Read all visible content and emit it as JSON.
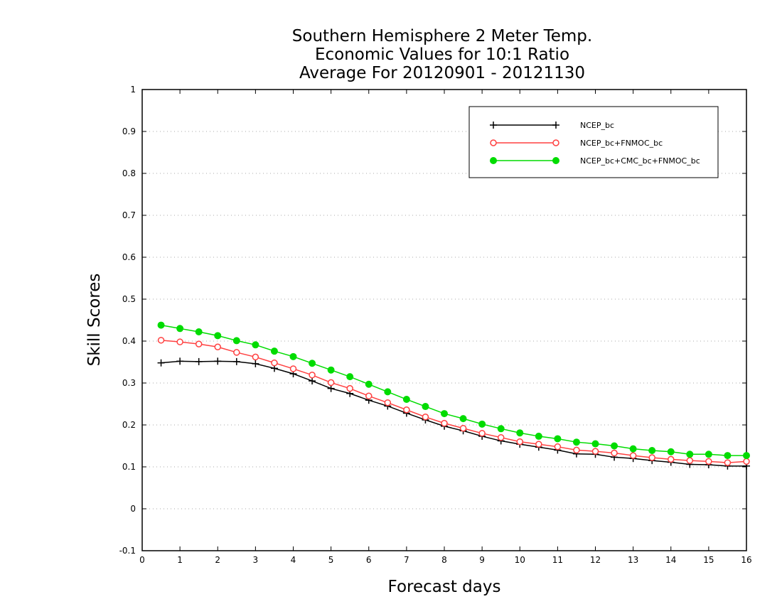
{
  "chart_data": {
    "type": "line",
    "title_lines": [
      "Southern Hemisphere 2 Meter Temp.",
      "Economic Values for 10:1 Ratio",
      "Average For 20120901 - 20121130"
    ],
    "xlabel": "Forecast days",
    "ylabel": "Skill Scores",
    "xlim": [
      0,
      16
    ],
    "ylim": [
      -0.1,
      1
    ],
    "xticks": [
      "0",
      "1",
      "2",
      "3",
      "4",
      "5",
      "6",
      "7",
      "8",
      "9",
      "10",
      "11",
      "12",
      "13",
      "14",
      "15",
      "16"
    ],
    "yticks": [
      "-0.1",
      "0",
      "0.1",
      "0.2",
      "0.3",
      "0.4",
      "0.5",
      "0.6",
      "0.7",
      "0.8",
      "0.9",
      "1"
    ],
    "grid": true,
    "legend_position": "top-right",
    "x": [
      0.5,
      1,
      1.5,
      2,
      2.5,
      3,
      3.5,
      4,
      4.5,
      5,
      5.5,
      6,
      6.5,
      7,
      7.5,
      8,
      8.5,
      9,
      9.5,
      10,
      10.5,
      11,
      11.5,
      12,
      12.5,
      13,
      13.5,
      14,
      14.5,
      15,
      15.5,
      16
    ],
    "series": [
      {
        "name": "NCEP_bc",
        "color": "#000000",
        "marker": "plus",
        "values": [
          0.348,
          0.352,
          0.351,
          0.352,
          0.351,
          0.346,
          0.335,
          0.322,
          0.305,
          0.287,
          0.275,
          0.259,
          0.245,
          0.228,
          0.212,
          0.197,
          0.186,
          0.173,
          0.162,
          0.154,
          0.147,
          0.14,
          0.131,
          0.13,
          0.123,
          0.12,
          0.115,
          0.111,
          0.106,
          0.105,
          0.102,
          0.102
        ]
      },
      {
        "name": "NCEP_bc+FNMOC_bc",
        "color": "#ff4040",
        "marker": "open-circle",
        "values": [
          0.402,
          0.398,
          0.393,
          0.386,
          0.373,
          0.362,
          0.348,
          0.334,
          0.319,
          0.301,
          0.287,
          0.269,
          0.253,
          0.236,
          0.219,
          0.204,
          0.192,
          0.18,
          0.17,
          0.16,
          0.154,
          0.148,
          0.14,
          0.137,
          0.133,
          0.127,
          0.122,
          0.118,
          0.115,
          0.113,
          0.11,
          0.113
        ]
      },
      {
        "name": "NCEP_bc+CMC_bc+FNMOC_bc",
        "color": "#00dc00",
        "marker": "filled-circle",
        "values": [
          0.438,
          0.43,
          0.422,
          0.413,
          0.401,
          0.391,
          0.376,
          0.363,
          0.347,
          0.331,
          0.315,
          0.297,
          0.279,
          0.261,
          0.244,
          0.227,
          0.215,
          0.202,
          0.191,
          0.181,
          0.173,
          0.167,
          0.159,
          0.155,
          0.15,
          0.143,
          0.139,
          0.136,
          0.13,
          0.13,
          0.127,
          0.127
        ]
      }
    ]
  }
}
